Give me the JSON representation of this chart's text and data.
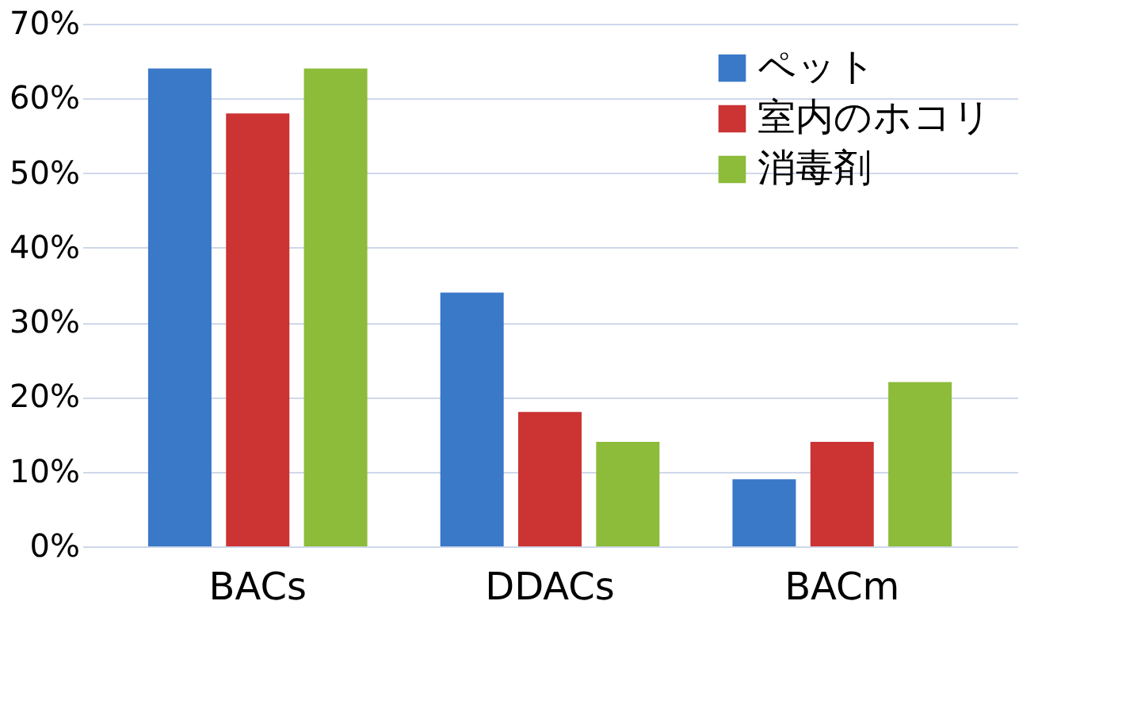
{
  "chart_data": {
    "type": "bar",
    "categories": [
      "BACs",
      "DDACs",
      "BACm"
    ],
    "series": [
      {
        "name": "ペット",
        "color": "#3a78c8",
        "values": [
          64,
          34,
          9
        ]
      },
      {
        "name": "室内のホコリ",
        "color": "#cc3333",
        "values": [
          58,
          18,
          14
        ]
      },
      {
        "name": "消毒剤",
        "color": "#8dbb3a",
        "values": [
          64,
          14,
          22
        ]
      }
    ],
    "ylim": [
      0,
      70
    ],
    "yticks": [
      {
        "value": 0,
        "label": "0%"
      },
      {
        "value": 10,
        "label": "10%"
      },
      {
        "value": 20,
        "label": "20%"
      },
      {
        "value": 30,
        "label": "30%"
      },
      {
        "value": 40,
        "label": "40%"
      },
      {
        "value": 50,
        "label": "50%"
      },
      {
        "value": 60,
        "label": "60%"
      },
      {
        "value": 70,
        "label": "70%"
      }
    ],
    "grid": "y",
    "legend": "top right"
  }
}
